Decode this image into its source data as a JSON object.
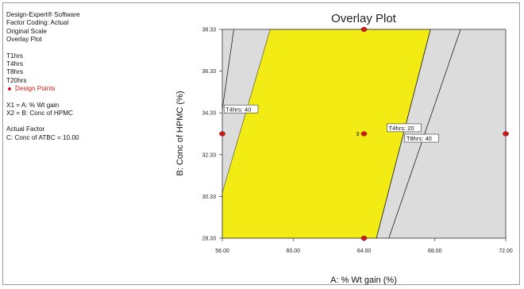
{
  "info_panel": {
    "lines": [
      "Design-Expert® Software",
      "Factor Coding: Actual",
      "Original Scale",
      "Overlay Plot"
    ],
    "responses": [
      "T1hrs",
      "T4hrs",
      "T8hrs",
      "T20hrs"
    ],
    "design_points_label": "Design Points",
    "factor_lines": [
      "X1 = A: % Wt gain",
      "X2 = B: Conc of HPMC"
    ],
    "actual_factor_title": "Actual Factor",
    "actual_factor_value": "C: Conc of ATBC = 10.00"
  },
  "colors": {
    "feasible_region": "#f2ec14",
    "infeasible_region": "#dcdcdc",
    "design_point": "#cc1a1a",
    "contour_line": "#222222"
  },
  "chart_data": {
    "type": "scatter",
    "title": "Overlay Plot",
    "xlabel": "A: % Wt gain (%)",
    "ylabel": "B: Conc of HPMC (%)",
    "xlim": [
      56,
      72
    ],
    "ylim": [
      28.33,
      38.33
    ],
    "x_ticks": [
      "56.00",
      "60.00",
      "64.00",
      "68.00",
      "72.00"
    ],
    "y_ticks": [
      "28.33",
      "30.33",
      "32.33",
      "34.33",
      "36.33",
      "38.33"
    ],
    "grid": false,
    "design_points": [
      {
        "x": 56,
        "y": 33.33
      },
      {
        "x": 64,
        "y": 33.33,
        "label": "3"
      },
      {
        "x": 72,
        "y": 33.33
      },
      {
        "x": 64,
        "y": 28.33
      },
      {
        "x": 64,
        "y": 38.33
      }
    ],
    "feasible_region": [
      [
        56,
        28.33
      ],
      [
        64.7,
        28.33
      ],
      [
        67.75,
        38.33
      ],
      [
        58.7,
        38.33
      ],
      [
        56,
        30.5
      ]
    ],
    "contours": [
      {
        "label": "T4hrs: 40",
        "points": [
          [
            56,
            34.5
          ],
          [
            56.65,
            38.33
          ]
        ],
        "label_at": [
          56.1,
          34.5
        ]
      },
      {
        "label": "T4hrs: 20",
        "points": [
          [
            64.7,
            28.33
          ],
          [
            67.75,
            38.33
          ]
        ],
        "label_at": [
          65.3,
          33.6
        ]
      },
      {
        "label": "T8hrs: 40",
        "points": [
          [
            65.4,
            28.33
          ],
          [
            69.45,
            38.33
          ]
        ],
        "label_at": [
          66.3,
          33.1
        ]
      }
    ]
  }
}
